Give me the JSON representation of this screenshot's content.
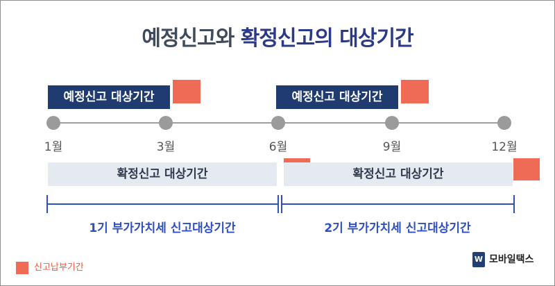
{
  "title": {
    "part1": "예정신고와",
    "part2": "확정신고의 대상기간"
  },
  "top_labels": {
    "left": "예정신고 대상기간",
    "right": "예정신고 대상기간"
  },
  "months": [
    "1월",
    "3월",
    "6월",
    "9월",
    "12월"
  ],
  "bands": {
    "left": "확정신고 대상기간",
    "right": "확정신고 대상기간"
  },
  "vat_periods": {
    "first": "1기 부가가치세 신고대상기간",
    "second": "2기 부가가치세 신고대상기간"
  },
  "legend": {
    "label": "신고납부기간",
    "color": "#ef6b55"
  },
  "logo": {
    "mark": "W",
    "text": "모바일택스"
  },
  "colors": {
    "navy": "#1f3b70",
    "orange": "#ef6b55",
    "blue": "#2f4fbf",
    "band": "#e4eaf0"
  }
}
